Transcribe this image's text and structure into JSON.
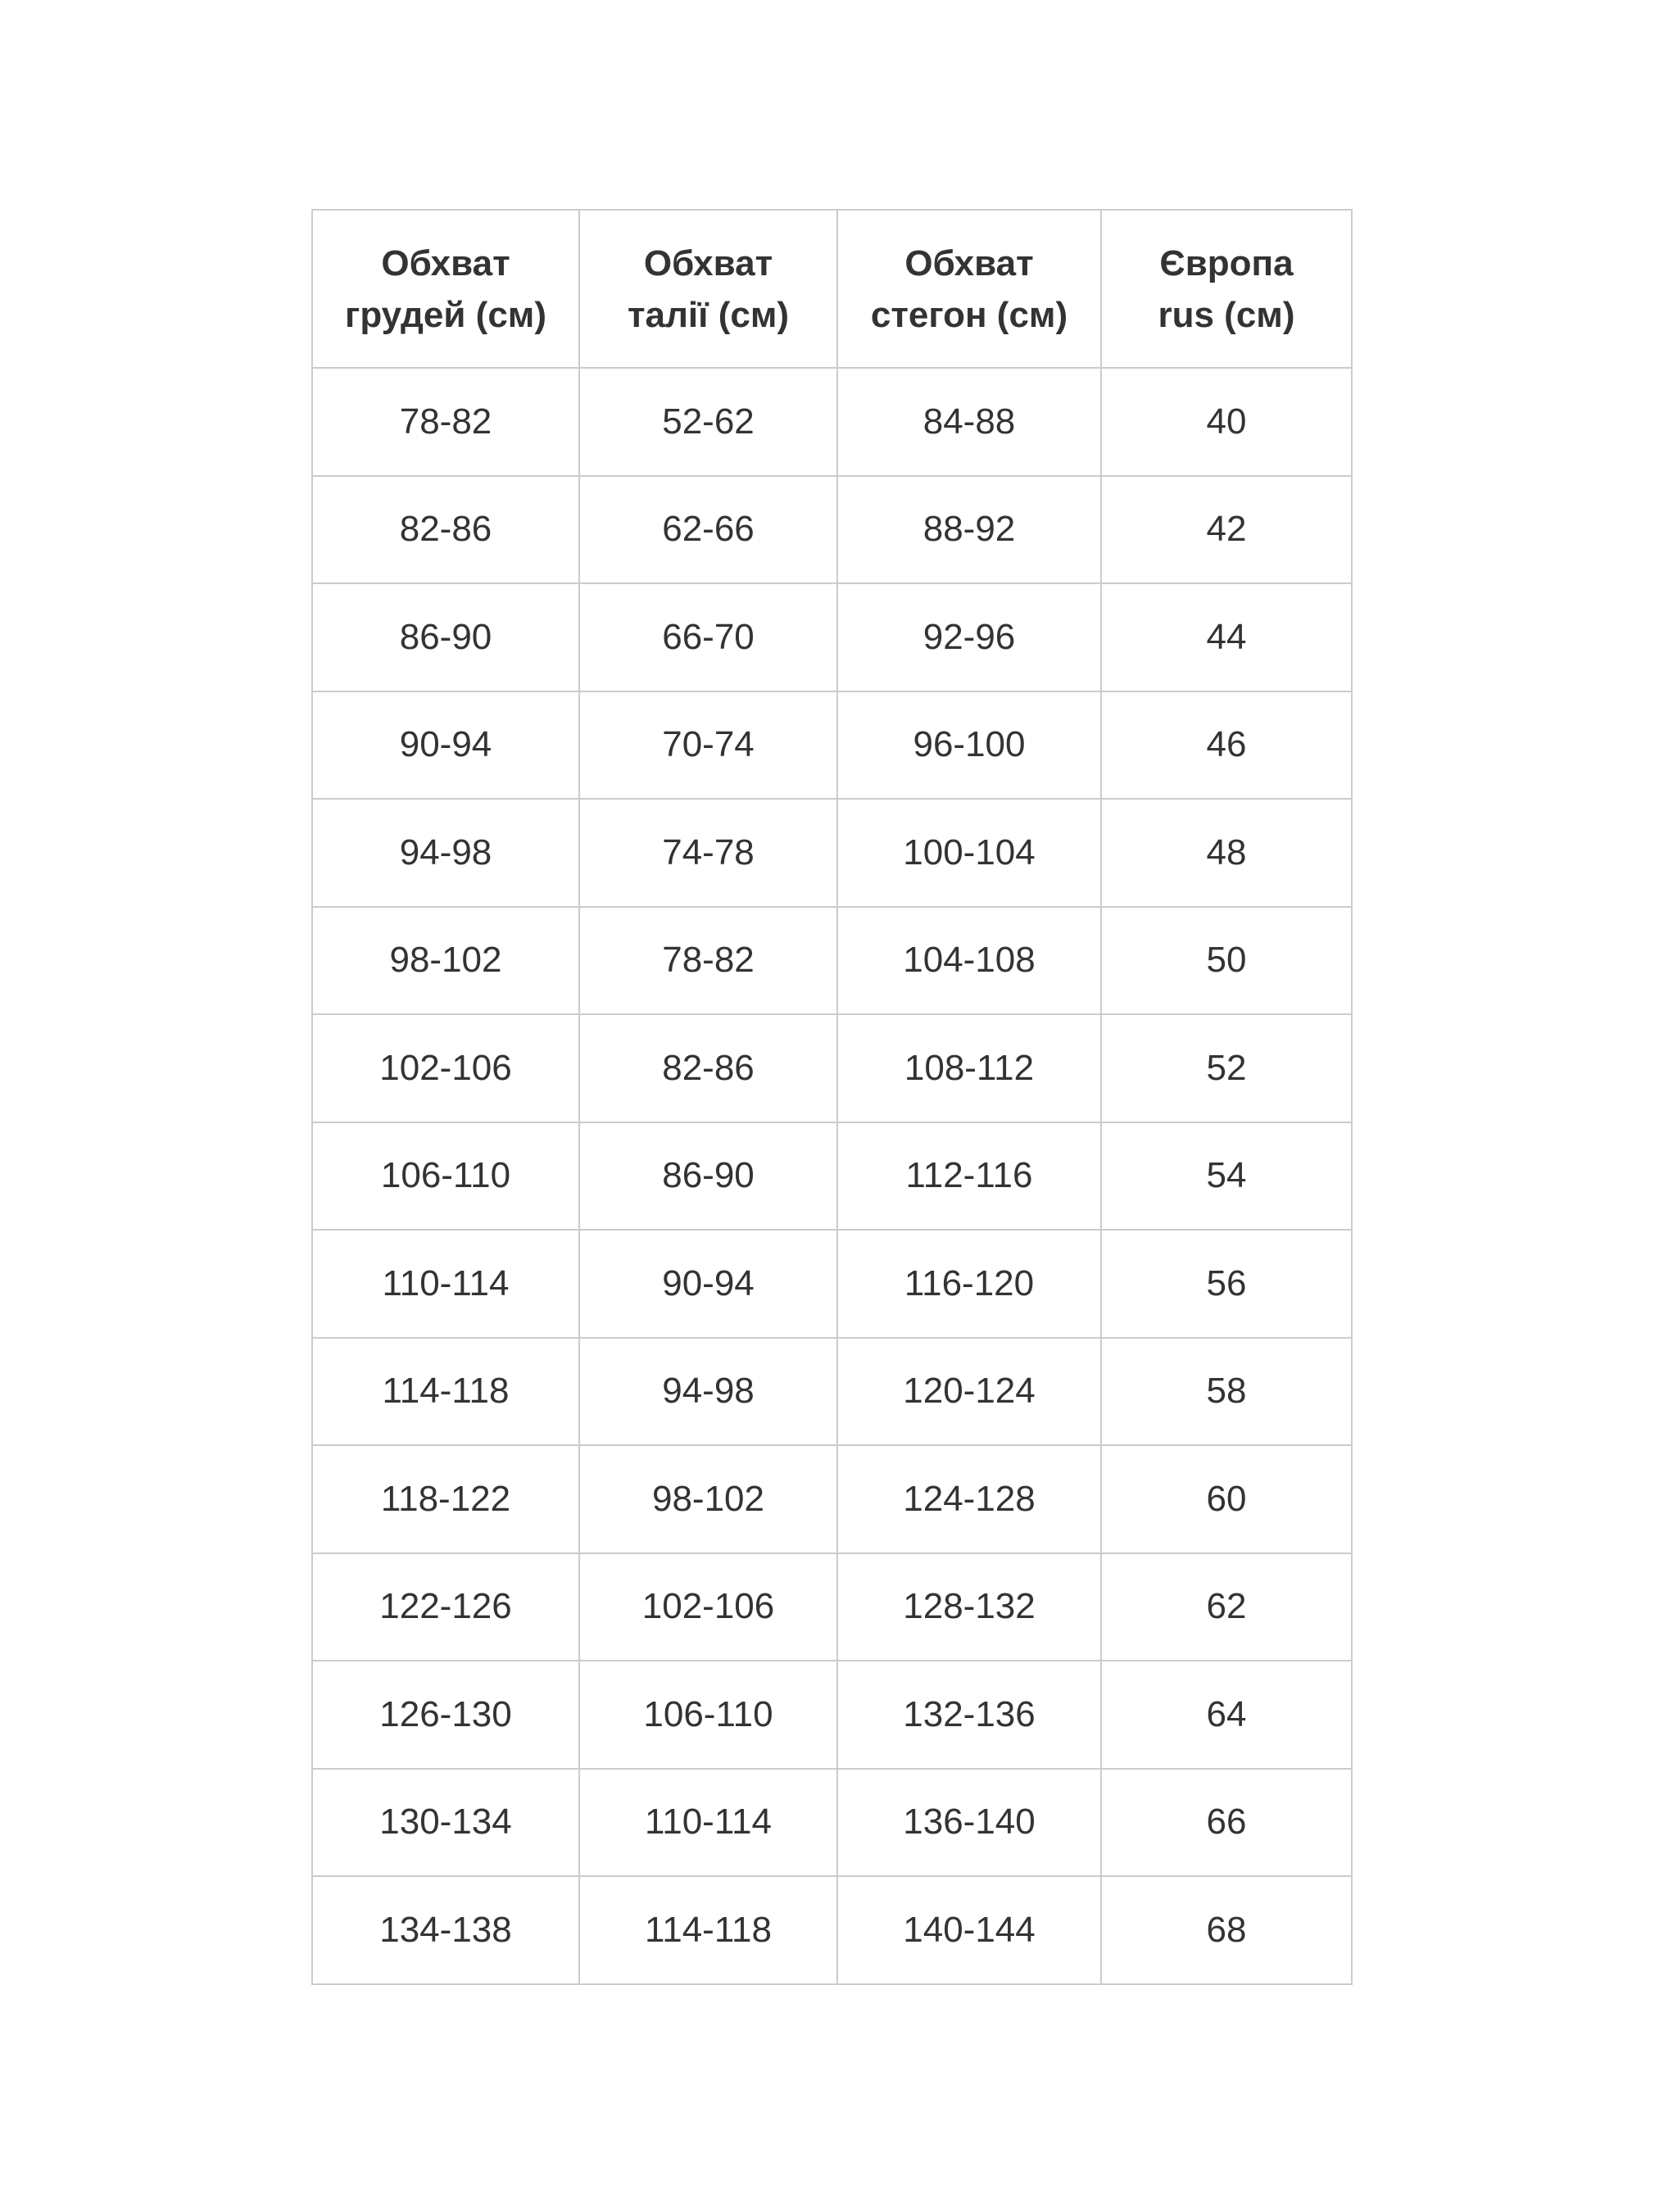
{
  "page": {
    "background_color": "#ffffff"
  },
  "table": {
    "text_color": "#333333",
    "border_color": "#cccccc",
    "headers": [
      {
        "line1": "Обхват",
        "line2": "грудей (см)"
      },
      {
        "line1": "Обхват",
        "line2": "талії (см)"
      },
      {
        "line1": "Обхват",
        "line2": "стегон (см)"
      },
      {
        "line1": "Європа",
        "line2": "rus (см)"
      }
    ],
    "rows": [
      [
        "78-82",
        "52-62",
        "84-88",
        "40"
      ],
      [
        "82-86",
        "62-66",
        "88-92",
        "42"
      ],
      [
        "86-90",
        "66-70",
        "92-96",
        "44"
      ],
      [
        "90-94",
        "70-74",
        "96-100",
        "46"
      ],
      [
        "94-98",
        "74-78",
        "100-104",
        "48"
      ],
      [
        "98-102",
        "78-82",
        "104-108",
        "50"
      ],
      [
        "102-106",
        "82-86",
        "108-112",
        "52"
      ],
      [
        "106-110",
        "86-90",
        "112-116",
        "54"
      ],
      [
        "110-114",
        "90-94",
        "116-120",
        "56"
      ],
      [
        "114-118",
        "94-98",
        "120-124",
        "58"
      ],
      [
        "118-122",
        "98-102",
        "124-128",
        "60"
      ],
      [
        "122-126",
        "102-106",
        "128-132",
        "62"
      ],
      [
        "126-130",
        "106-110",
        "132-136",
        "64"
      ],
      [
        "130-134",
        "110-114",
        "136-140",
        "66"
      ],
      [
        "134-138",
        "114-118",
        "140-144",
        "68"
      ]
    ]
  }
}
